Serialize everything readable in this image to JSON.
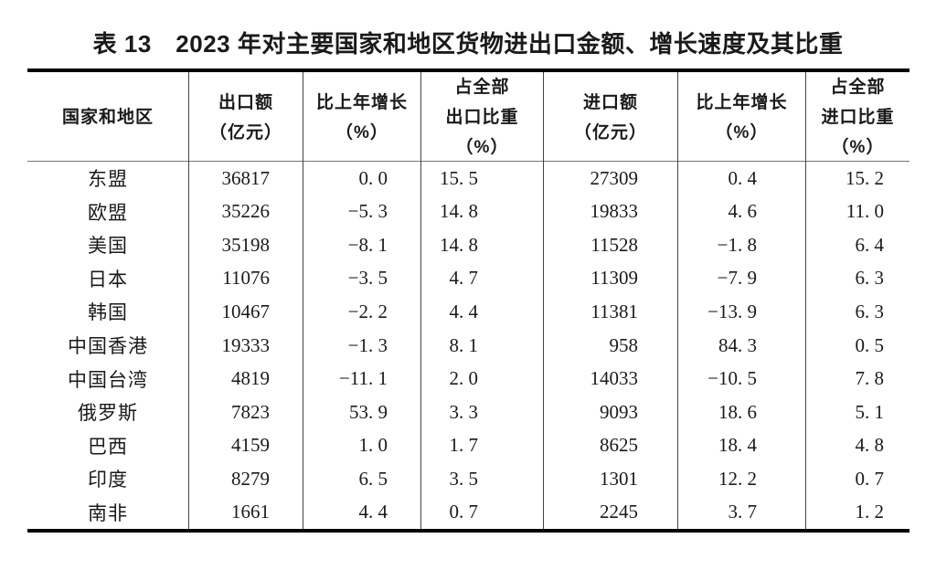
{
  "title": "表 13　2023 年对主要国家和地区货物进出口金额、增长速度及其比重",
  "table": {
    "columns": [
      {
        "id": "region",
        "lines": [
          "国家和地区"
        ]
      },
      {
        "id": "export_amount",
        "lines": [
          "出口额",
          "（亿元）"
        ]
      },
      {
        "id": "export_growth",
        "lines": [
          "比上年增长",
          "（%）"
        ]
      },
      {
        "id": "export_share",
        "lines": [
          "占全部",
          "出口比重",
          "（%）"
        ]
      },
      {
        "id": "import_amount",
        "lines": [
          "进口额",
          "（亿元）"
        ]
      },
      {
        "id": "import_growth",
        "lines": [
          "比上年增长",
          "（%）"
        ]
      },
      {
        "id": "import_share",
        "lines": [
          "占全部",
          "进口比重",
          "（%）"
        ]
      }
    ],
    "rows": [
      {
        "region": "东盟",
        "values": [
          "36817",
          "0. 0",
          "15. 5",
          "27309",
          "0. 4",
          "15. 2"
        ]
      },
      {
        "region": "欧盟",
        "values": [
          "35226",
          "−5. 3",
          "14. 8",
          "19833",
          "4. 6",
          "11. 0"
        ]
      },
      {
        "region": "美国",
        "values": [
          "35198",
          "−8. 1",
          "14. 8",
          "11528",
          "−1. 8",
          "6. 4"
        ]
      },
      {
        "region": "日本",
        "values": [
          "11076",
          "−3. 5",
          "4. 7",
          "11309",
          "−7. 9",
          "6. 3"
        ]
      },
      {
        "region": "韩国",
        "values": [
          "10467",
          "−2. 2",
          "4. 4",
          "11381",
          "−13. 9",
          "6. 3"
        ]
      },
      {
        "region": "中国香港",
        "values": [
          "19333",
          "−1. 3",
          "8. 1",
          "958",
          "84. 3",
          "0. 5"
        ]
      },
      {
        "region": "中国台湾",
        "values": [
          "4819",
          "−11. 1",
          "2. 0",
          "14033",
          "−10. 5",
          "7. 8"
        ]
      },
      {
        "region": "俄罗斯",
        "values": [
          "7823",
          "53. 9",
          "3. 3",
          "9093",
          "18. 6",
          "5. 1"
        ]
      },
      {
        "region": "巴西",
        "values": [
          "4159",
          "1. 0",
          "1. 7",
          "8625",
          "18. 4",
          "4. 8"
        ]
      },
      {
        "region": "印度",
        "values": [
          "8279",
          "6. 5",
          "3. 5",
          "1301",
          "12. 2",
          "0. 7"
        ]
      },
      {
        "region": "南非",
        "values": [
          "1661",
          "4. 4",
          "0. 7",
          "2245",
          "3. 7",
          "1. 2"
        ]
      }
    ]
  },
  "chart_data": {
    "type": "table",
    "title": "表13 2023年对主要国家和地区货物进出口金额、增长速度及其比重",
    "columns": [
      "国家和地区",
      "出口额（亿元）",
      "比上年增长（%）",
      "占全部出口比重（%）",
      "进口额（亿元）",
      "比上年增长（%）",
      "占全部进口比重（%）"
    ],
    "rows": [
      [
        "东盟",
        36817,
        0.0,
        15.5,
        27309,
        0.4,
        15.2
      ],
      [
        "欧盟",
        35226,
        -5.3,
        14.8,
        19833,
        4.6,
        11.0
      ],
      [
        "美国",
        35198,
        -8.1,
        14.8,
        11528,
        -1.8,
        6.4
      ],
      [
        "日本",
        11076,
        -3.5,
        4.7,
        11309,
        -7.9,
        6.3
      ],
      [
        "韩国",
        10467,
        -2.2,
        4.4,
        11381,
        -13.9,
        6.3
      ],
      [
        "中国香港",
        19333,
        -1.3,
        8.1,
        958,
        84.3,
        0.5
      ],
      [
        "中国台湾",
        4819,
        -11.1,
        2.0,
        14033,
        -10.5,
        7.8
      ],
      [
        "俄罗斯",
        7823,
        53.9,
        3.3,
        9093,
        18.6,
        5.1
      ],
      [
        "巴西",
        4159,
        1.0,
        1.7,
        8625,
        18.4,
        4.8
      ],
      [
        "印度",
        8279,
        6.5,
        3.5,
        1301,
        12.2,
        0.7
      ],
      [
        "南非",
        1661,
        4.4,
        0.7,
        2245,
        3.7,
        1.2
      ]
    ]
  },
  "colors": {
    "background": "#ffffff",
    "text": "#1a1a1a",
    "border_thick": "#000000",
    "border_thin": "#444444",
    "header_separator": "#777777"
  }
}
